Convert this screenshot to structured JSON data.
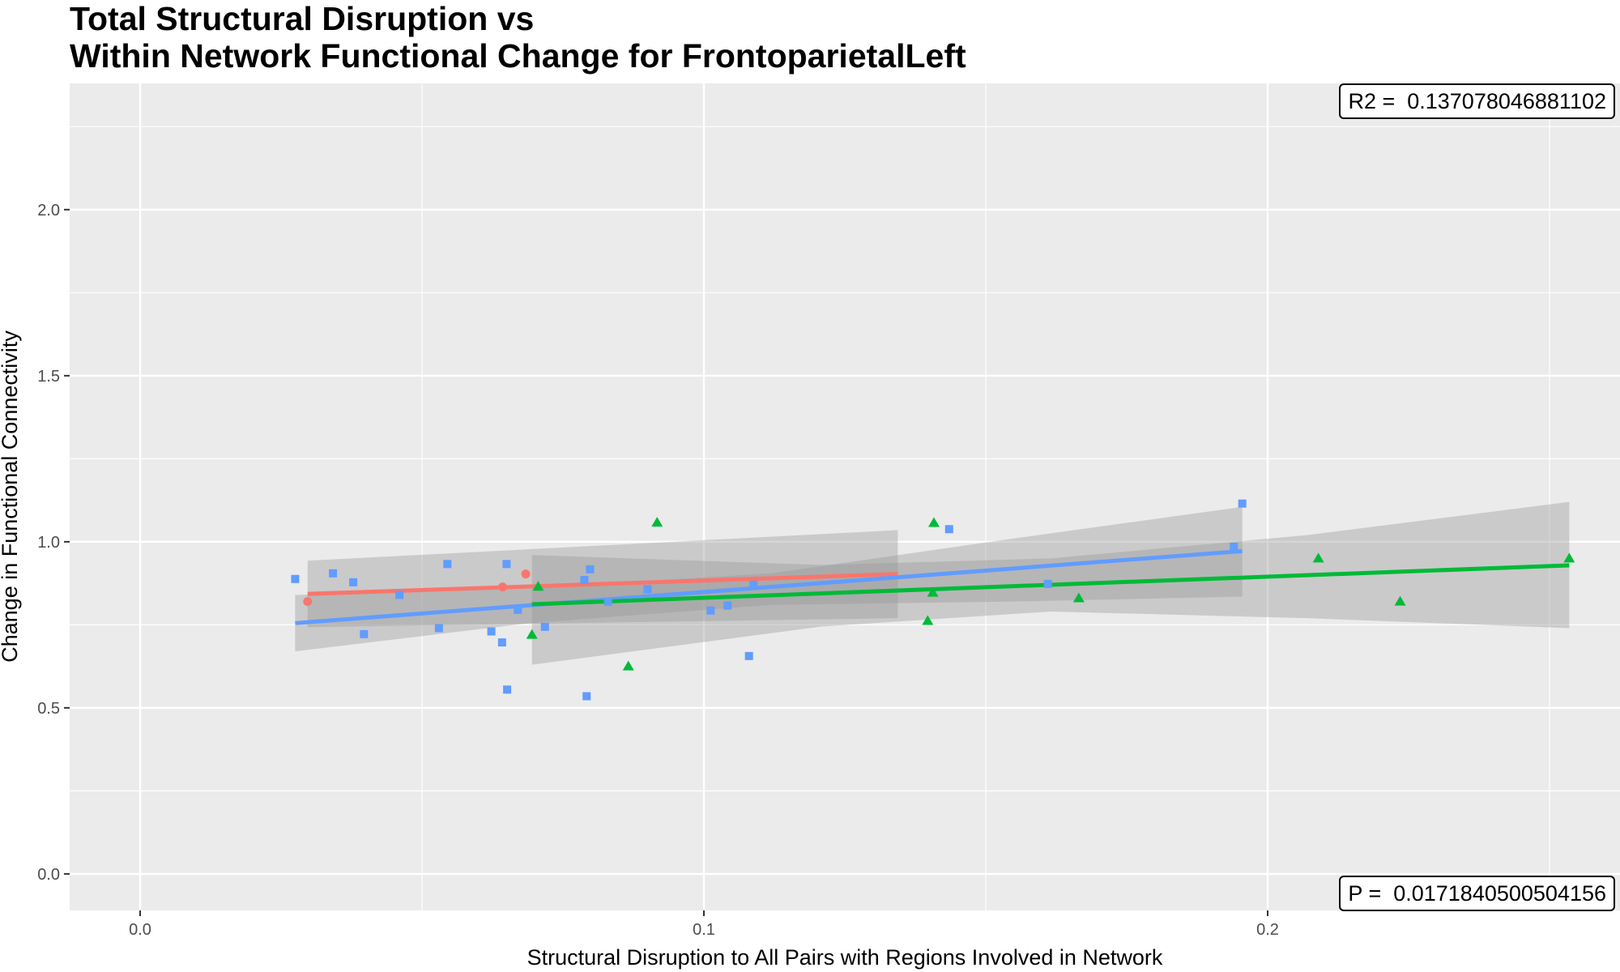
{
  "chart_data": {
    "type": "scatter",
    "title": [
      "Total Structural Disruption vs",
      "Within Network Functional Change for FrontoparietalLeft"
    ],
    "xlabel": "Structural Disruption to All Pairs with Regions Involved in Network",
    "ylabel": "Change in Functional Connectivity",
    "xlim": [
      -0.0125,
      0.2625
    ],
    "ylim": [
      -0.11,
      2.38
    ],
    "x_ticks": [
      0.0,
      0.1,
      0.2
    ],
    "x_tick_labels": [
      "0.0",
      "0.1",
      "0.2"
    ],
    "y_ticks": [
      0.0,
      0.5,
      1.0,
      1.5,
      2.0
    ],
    "y_tick_labels": [
      "0.0",
      "0.5",
      "1.0",
      "1.5",
      "2.0"
    ],
    "grid": true,
    "legend": "none",
    "series": [
      {
        "color": "#f8766d",
        "marker": "circle",
        "points": [
          [
            0.0297,
            0.82
          ],
          [
            0.0643,
            0.864
          ],
          [
            0.0684,
            0.903
          ]
        ],
        "fit": {
          "x": [
            0.0297,
            0.1344
          ],
          "y": [
            0.843,
            0.903
          ]
        },
        "band": {
          "x": [
            0.0297,
            0.1344
          ],
          "lower": [
            0.743,
            0.77
          ],
          "upper": [
            0.943,
            1.035
          ]
        }
      },
      {
        "color": "#619cff",
        "marker": "square",
        "points": [
          [
            0.0275,
            0.888
          ],
          [
            0.0342,
            0.905
          ],
          [
            0.0378,
            0.878
          ],
          [
            0.0397,
            0.722
          ],
          [
            0.046,
            0.84
          ],
          [
            0.053,
            0.74
          ],
          [
            0.0545,
            0.933
          ],
          [
            0.0623,
            0.73
          ],
          [
            0.0642,
            0.697
          ],
          [
            0.065,
            0.933
          ],
          [
            0.0651,
            0.555
          ],
          [
            0.067,
            0.795
          ],
          [
            0.0718,
            0.744
          ],
          [
            0.0788,
            0.885
          ],
          [
            0.0792,
            0.535
          ],
          [
            0.0798,
            0.917
          ],
          [
            0.083,
            0.82
          ],
          [
            0.09,
            0.857
          ],
          [
            0.1012,
            0.793
          ],
          [
            0.1042,
            0.808
          ],
          [
            0.108,
            0.656
          ],
          [
            0.1088,
            0.87
          ],
          [
            0.1435,
            1.038
          ],
          [
            0.161,
            0.873
          ],
          [
            0.194,
            0.985
          ],
          [
            0.1955,
            1.115
          ]
        ],
        "fit": {
          "x": [
            0.0275,
            0.1955
          ],
          "y": [
            0.755,
            0.972
          ]
        },
        "band": {
          "x": [
            0.0275,
            0.069,
            0.112,
            0.155,
            0.1955
          ],
          "lower": [
            0.67,
            0.755,
            0.81,
            0.82,
            0.835
          ],
          "upper": [
            0.84,
            0.86,
            0.905,
            1.01,
            1.105
          ]
        }
      },
      {
        "color": "#00ba38",
        "marker": "triangle",
        "points": [
          [
            0.0695,
            0.72
          ],
          [
            0.0706,
            0.865
          ],
          [
            0.0866,
            0.625
          ],
          [
            0.0917,
            1.058
          ],
          [
            0.1397,
            0.762
          ],
          [
            0.1406,
            0.847
          ],
          [
            0.1408,
            1.057
          ],
          [
            0.1665,
            0.83
          ],
          [
            0.209,
            0.95
          ],
          [
            0.2235,
            0.82
          ],
          [
            0.2535,
            0.95
          ]
        ],
        "fit": {
          "x": [
            0.0695,
            0.2535
          ],
          "y": [
            0.812,
            0.929
          ]
        },
        "band": {
          "x": [
            0.0695,
            0.121,
            0.1615,
            0.207,
            0.2535
          ],
          "lower": [
            0.63,
            0.745,
            0.79,
            0.77,
            0.74
          ],
          "upper": [
            0.96,
            0.93,
            0.95,
            1.02,
            1.12
          ]
        }
      }
    ],
    "annotations": {
      "r2": "R2 =  0.137078046881102",
      "p": "P =  0.0171840500504156"
    }
  }
}
